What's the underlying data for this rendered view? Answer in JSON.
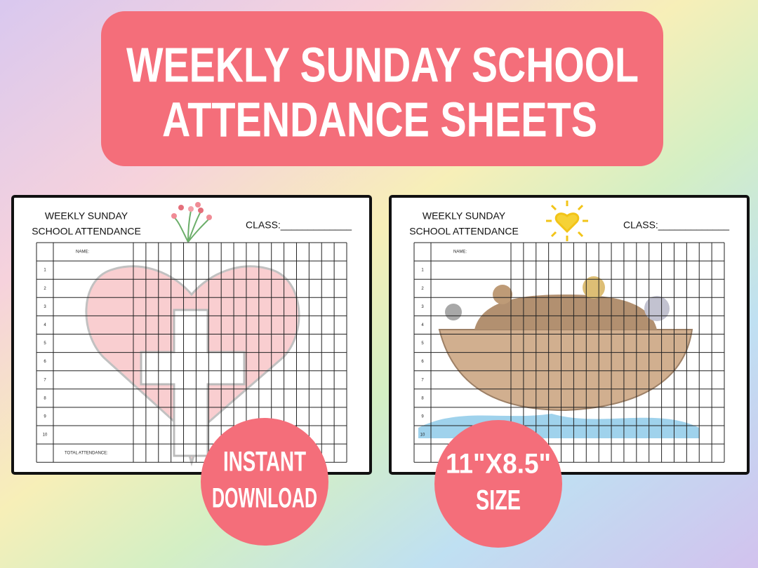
{
  "banner": {
    "lines": [
      "WEEKLY SUNDAY SCHOOL",
      "ATTENDANCE SHEETS"
    ]
  },
  "sheets": [
    {
      "title_lines": [
        "WEEKLY SUNDAY",
        "SCHOOL ATTENDANCE"
      ],
      "class_label": "CLASS:_____________",
      "name_header": "NAME:",
      "row_numbers": [
        "1",
        "2",
        "3",
        "4",
        "5",
        "6",
        "7",
        "8",
        "9",
        "10"
      ],
      "total_label": "TOTAL ATTENDANCE:"
    },
    {
      "title_lines": [
        "WEEKLY SUNDAY",
        "SCHOOL ATTENDANCE"
      ],
      "class_label": "CLASS:_____________",
      "name_header": "NAME:",
      "row_numbers": [
        "1",
        "2",
        "3",
        "4",
        "5",
        "6",
        "7",
        "8",
        "9",
        "10"
      ]
    }
  ],
  "badges": [
    {
      "lines": [
        "INSTANT",
        "DOWNLOAD"
      ]
    },
    {
      "lines": [
        "11\"X8.5\"",
        "SIZE"
      ]
    }
  ]
}
